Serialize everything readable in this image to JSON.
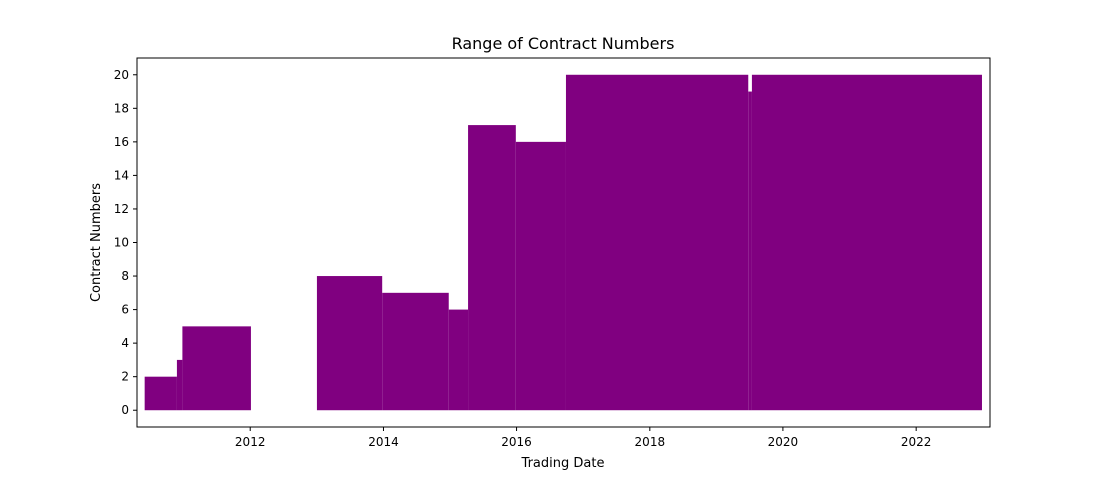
{
  "chart_data": {
    "type": "area",
    "title": "Range of Contract Numbers",
    "xlabel": "Trading Date",
    "ylabel": "Contract Numbers",
    "x_range": [
      "2010-04-20",
      "2023-02-10"
    ],
    "ylim": [
      -1,
      21
    ],
    "grid": false,
    "legend": "none",
    "fill_color": "#800080",
    "x_ticks": [
      {
        "date": "2012-01-01",
        "label": "2012"
      },
      {
        "date": "2014-01-01",
        "label": "2014"
      },
      {
        "date": "2016-01-01",
        "label": "2016"
      },
      {
        "date": "2018-01-01",
        "label": "2018"
      },
      {
        "date": "2020-01-01",
        "label": "2020"
      },
      {
        "date": "2022-01-01",
        "label": "2022"
      }
    ],
    "y_ticks": [
      {
        "value": 0,
        "label": "0"
      },
      {
        "value": 2,
        "label": "2"
      },
      {
        "value": 4,
        "label": "4"
      },
      {
        "value": 6,
        "label": "6"
      },
      {
        "value": 8,
        "label": "8"
      },
      {
        "value": 10,
        "label": "10"
      },
      {
        "value": 12,
        "label": "12"
      },
      {
        "value": 14,
        "label": "14"
      },
      {
        "value": 16,
        "label": "16"
      },
      {
        "value": 18,
        "label": "18"
      },
      {
        "value": 20,
        "label": "20"
      }
    ],
    "segments": [
      {
        "start": "2010-06-01",
        "end": "2010-11-25",
        "min": 0,
        "max": 2
      },
      {
        "start": "2010-11-25",
        "end": "2010-12-25",
        "min": 0,
        "max": 3
      },
      {
        "start": "2010-12-25",
        "end": "2012-01-05",
        "min": 0,
        "max": 5
      },
      {
        "start": "2013-01-01",
        "end": "2013-12-25",
        "min": 0,
        "max": 8
      },
      {
        "start": "2013-12-25",
        "end": "2014-12-25",
        "min": 0,
        "max": 7
      },
      {
        "start": "2014-12-25",
        "end": "2015-04-10",
        "min": 0,
        "max": 6
      },
      {
        "start": "2015-04-10",
        "end": "2015-12-28",
        "min": 0,
        "max": 17
      },
      {
        "start": "2015-12-28",
        "end": "2016-09-28",
        "min": 0,
        "max": 16
      },
      {
        "start": "2016-09-28",
        "end": "2019-06-25",
        "min": 0,
        "max": 20
      },
      {
        "start": "2019-06-25",
        "end": "2019-07-15",
        "min": 0,
        "max": 19
      },
      {
        "start": "2019-07-15",
        "end": "2022-12-28",
        "min": 0,
        "max": 20
      }
    ]
  }
}
